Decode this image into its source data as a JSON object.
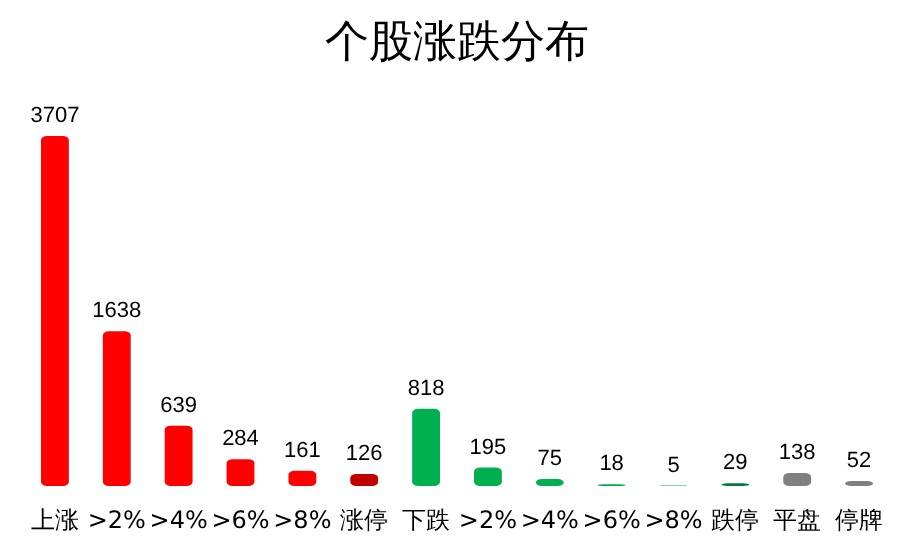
{
  "chart_data": {
    "type": "bar",
    "title": "个股涨跌分布",
    "categories": [
      "上涨",
      ">2%",
      ">4%",
      ">6%",
      ">8%",
      "涨停",
      "下跌",
      ">2%",
      ">4%",
      ">6%",
      ">8%",
      "跌停",
      "平盘",
      "停牌"
    ],
    "values": [
      3707,
      1638,
      639,
      284,
      161,
      126,
      818,
      195,
      75,
      18,
      5,
      29,
      138,
      52
    ],
    "colors": [
      "#ff0000",
      "#ff0000",
      "#ff0000",
      "#ff0000",
      "#ff0000",
      "#c00000",
      "#00b050",
      "#00b050",
      "#00b050",
      "#00b050",
      "#00b050",
      "#007a3d",
      "#808080",
      "#808080"
    ],
    "data_labels": true
  }
}
